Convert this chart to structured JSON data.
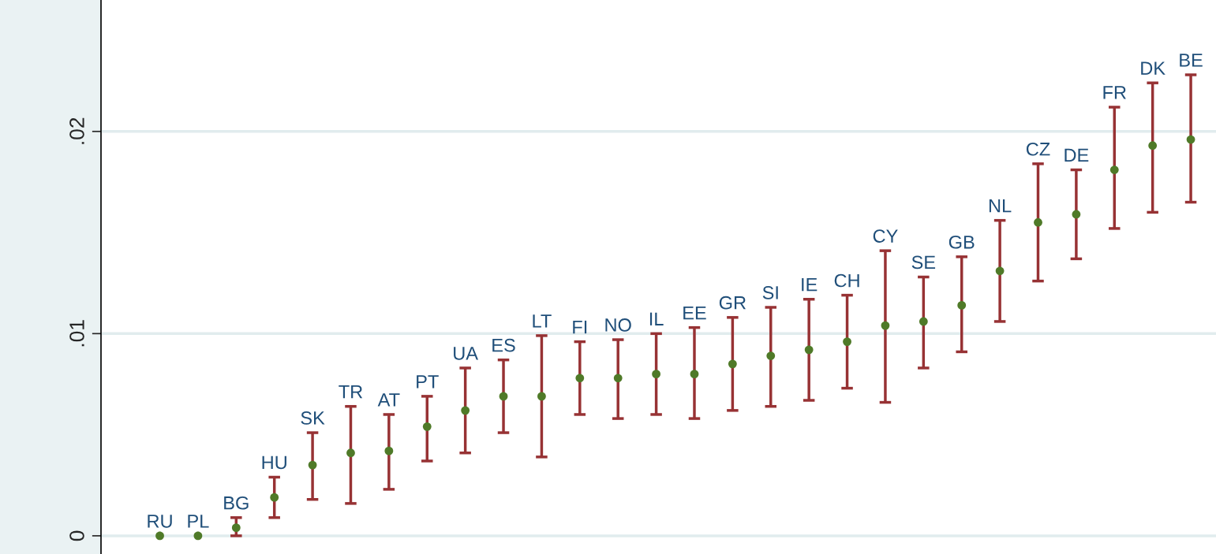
{
  "chart_data": {
    "type": "scatter",
    "categories": [
      "RU",
      "PL",
      "BG",
      "HU",
      "SK",
      "TR",
      "AT",
      "PT",
      "UA",
      "ES",
      "LT",
      "FI",
      "NO",
      "IL",
      "EE",
      "GR",
      "SI",
      "IE",
      "CH",
      "CY",
      "SE",
      "GB",
      "NL",
      "CZ",
      "DE",
      "FR",
      "DK",
      "BE"
    ],
    "series": [
      {
        "color": "#4f7a28",
        "values": [
          0,
          0,
          0.0004,
          0.0019,
          0.0035,
          0.0041,
          0.0042,
          0.0054,
          0.0062,
          0.0069,
          0.0069,
          0.0078,
          0.0078,
          0.008,
          0.008,
          0.0085,
          0.0089,
          0.0092,
          0.0096,
          0.0104,
          0.0106,
          0.0114,
          0.0131,
          0.0155,
          0.0159,
          0.0181,
          0.0193,
          0.0196
        ],
        "errors": [
          null,
          null,
          [
            0,
            0.0009
          ],
          [
            0.0009,
            0.0029
          ],
          [
            0.0018,
            0.0051
          ],
          [
            0.0016,
            0.0064
          ],
          [
            0.0023,
            0.006
          ],
          [
            0.0037,
            0.0069
          ],
          [
            0.0041,
            0.0083
          ],
          [
            0.0051,
            0.0087
          ],
          [
            0.0039,
            0.0099
          ],
          [
            0.006,
            0.0096
          ],
          [
            0.0058,
            0.0097
          ],
          [
            0.006,
            0.01
          ],
          [
            0.0058,
            0.0103
          ],
          [
            0.0062,
            0.0108
          ],
          [
            0.0064,
            0.0113
          ],
          [
            0.0067,
            0.0117
          ],
          [
            0.0073,
            0.0119
          ],
          [
            0.0066,
            0.0141
          ],
          [
            0.0083,
            0.0128
          ],
          [
            0.0091,
            0.0138
          ],
          [
            0.0106,
            0.0156
          ],
          [
            0.0126,
            0.0184
          ],
          [
            0.0137,
            0.0181
          ],
          [
            0.0152,
            0.0212
          ],
          [
            0.016,
            0.0224
          ],
          [
            0.0165,
            0.0228
          ]
        ]
      }
    ],
    "ylim": [
      -0.0009,
      0.0265
    ],
    "yticks": [
      {
        "value": 0,
        "label": "0"
      },
      {
        "value": 0.01,
        "label": ".01"
      },
      {
        "value": 0.02,
        "label": ".02"
      }
    ],
    "tick_labels": "y",
    "grid": "y",
    "marker": "circle"
  }
}
